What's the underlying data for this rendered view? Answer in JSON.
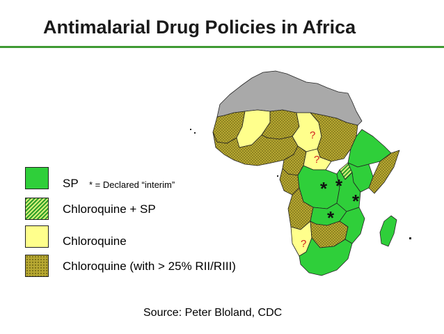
{
  "title": "Antimalarial Drug Policies in Africa",
  "legend": {
    "sp": {
      "label": "SP",
      "note": "* = Declared “interim”",
      "color": "#2fcf3a"
    },
    "combo": {
      "label": "Chloroquine + SP",
      "color": "#2e9f2a"
    },
    "chloroquine": {
      "label": "Chloroquine",
      "color": "#ffff8c"
    },
    "resistance": {
      "label": "Chloroquine (with > 25% RII/RIII)",
      "color": "#b7a832"
    }
  },
  "map": {
    "no_data_color": "#a9a9a9",
    "unknown_marker": "?",
    "interim_marker": "*"
  },
  "source": "Source: Peter Bloland, CDC"
}
